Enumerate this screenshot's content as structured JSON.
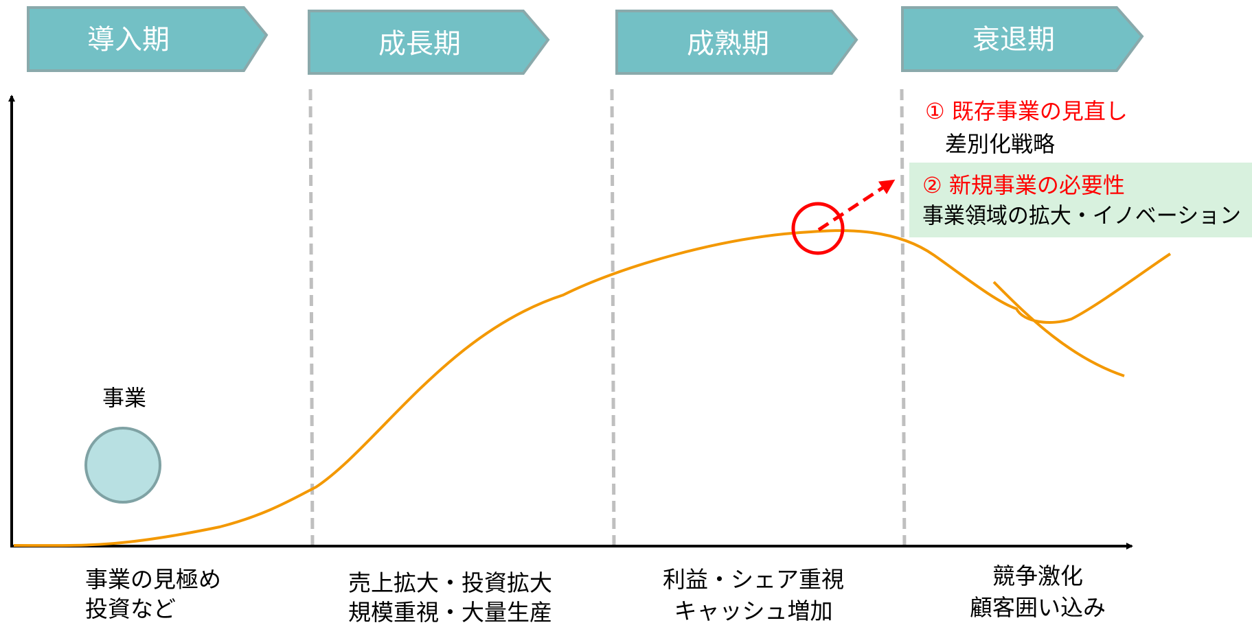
{
  "phases": [
    {
      "label": "導入期"
    },
    {
      "label": "成長期"
    },
    {
      "label": "成熟期"
    },
    {
      "label": "衰退期"
    }
  ],
  "phase_descriptions": [
    {
      "line1": "事業の見極め",
      "line2": "投資など"
    },
    {
      "line1": "売上拡大・投資拡大",
      "line2": "規模重視・大量生産"
    },
    {
      "line1": "利益・シェア重視",
      "line2": "キャッシュ増加"
    },
    {
      "line1": "競争激化",
      "line2": "顧客囲い込み"
    }
  ],
  "business_label": "事業",
  "strategies": {
    "existing": {
      "title": "① 既存事業の見直し",
      "detail": "差別化戦略"
    },
    "new": {
      "title": "② 新規事業の必要性",
      "detail": "事業領域の拡大・イノベーション"
    }
  },
  "colors": {
    "phase_banner": "#73c0c5",
    "phase_banner_border": "#8aa9ab",
    "curve": "#f39800",
    "highlight": "#ff0000",
    "divider": "#bfbfbf",
    "business_circle": "#b8e0e2",
    "business_circle_border": "#7fa2a4",
    "new_business_box": "#d8f1de",
    "axis": "#000000"
  }
}
